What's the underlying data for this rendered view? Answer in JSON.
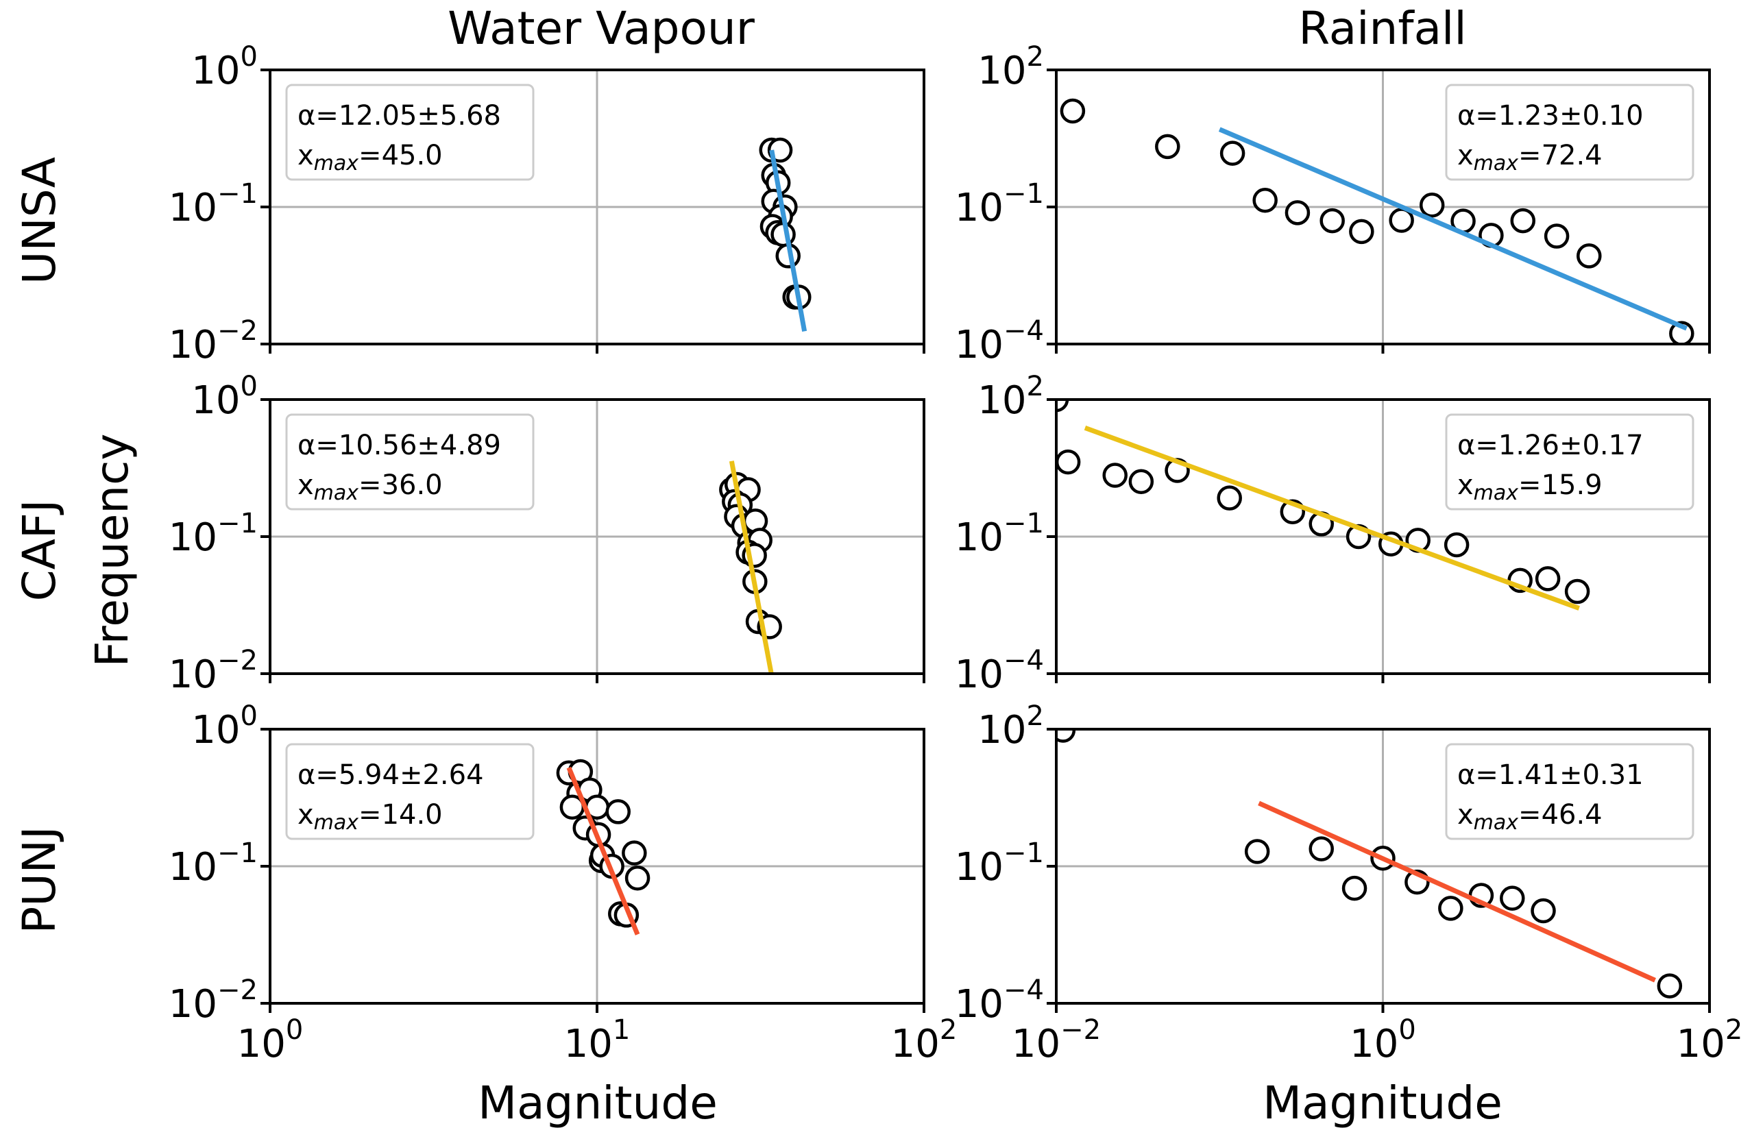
{
  "figure": {
    "column_titles": [
      "Water Vapour",
      "Rainfall"
    ],
    "row_labels": [
      "UNSA",
      "CAFJ",
      "PUNJ"
    ],
    "xlabel": "Magnitude",
    "ylabel": "Frequency",
    "colors": {
      "UNSA": "#3a97d8",
      "CAFJ": "#ebc117",
      "PUNJ": "#f4532e"
    }
  },
  "chart_data": [
    {
      "type": "scatter",
      "log_x": true,
      "log_y": true,
      "station": "UNSA",
      "variable": "Water Vapour",
      "xlim_exp": [
        0,
        2
      ],
      "ylim_exp": [
        -2,
        0
      ],
      "x_ticks": [
        {
          "base": "10",
          "exp": "0"
        },
        {
          "base": "10",
          "exp": "1"
        },
        {
          "base": "10",
          "exp": "2"
        }
      ],
      "y_ticks": [
        {
          "base": "10",
          "exp": "0"
        },
        {
          "base": "10",
          "exp": "−1"
        },
        {
          "base": "10",
          "exp": "−2"
        }
      ],
      "show_xticklabels": false,
      "grid": true,
      "legend": "top-left",
      "fit_color": "#3a97d8",
      "annotation": {
        "alpha": "α=12.05±5.68",
        "xmax_prefix": "x",
        "xmax_sub": "max",
        "xmax_value": "=45.0"
      },
      "points": [
        [
          34.2,
          0.26
        ],
        [
          36.3,
          0.26
        ],
        [
          34.7,
          0.17
        ],
        [
          35.8,
          0.15
        ],
        [
          34.7,
          0.11
        ],
        [
          37.6,
          0.1
        ],
        [
          36.4,
          0.085
        ],
        [
          34.4,
          0.072
        ],
        [
          35.7,
          0.065
        ],
        [
          37.1,
          0.063
        ],
        [
          38.4,
          0.044
        ],
        [
          40.3,
          0.022
        ],
        [
          41.4,
          0.022
        ]
      ],
      "fit": [
        [
          34.2,
          0.26
        ],
        [
          43.1,
          0.0124
        ]
      ]
    },
    {
      "type": "scatter",
      "log_x": true,
      "log_y": true,
      "station": "UNSA",
      "variable": "Rainfall",
      "xlim_exp": [
        -2,
        2
      ],
      "ylim_exp": [
        -4,
        2
      ],
      "x_ticks": [
        {
          "base": "10",
          "exp": "−2"
        },
        {
          "base": "10",
          "exp": "0"
        },
        {
          "base": "10",
          "exp": "2"
        }
      ],
      "y_ticks": [
        {
          "base": "10",
          "exp": "2"
        },
        {
          "base": "10",
          "exp": "−1"
        },
        {
          "base": "10",
          "exp": "−4"
        }
      ],
      "show_xticklabels": false,
      "grid": true,
      "legend": "top-right",
      "fit_color": "#3a97d8",
      "annotation": {
        "alpha": "α=1.23±0.10",
        "xmax_prefix": "x",
        "xmax_sub": "max",
        "xmax_value": "=72.4"
      },
      "points": [
        [
          0.0126,
          12.6
        ],
        [
          0.048,
          2.1
        ],
        [
          0.12,
          1.5
        ],
        [
          0.19,
          0.14
        ],
        [
          0.3,
          0.075
        ],
        [
          0.49,
          0.05
        ],
        [
          0.74,
          0.029
        ],
        [
          1.3,
          0.051
        ],
        [
          2.0,
          0.11
        ],
        [
          3.1,
          0.049
        ],
        [
          4.6,
          0.024
        ],
        [
          7.2,
          0.05
        ],
        [
          11.6,
          0.023
        ],
        [
          18.3,
          0.0085
        ],
        [
          67.5,
          0.00017
        ]
      ],
      "fit": [
        [
          0.1,
          5.0
        ],
        [
          72.4,
          0.00022
        ]
      ]
    },
    {
      "type": "scatter",
      "log_x": true,
      "log_y": true,
      "station": "CAFJ",
      "variable": "Water Vapour",
      "xlim_exp": [
        0,
        2
      ],
      "ylim_exp": [
        -2,
        0
      ],
      "x_ticks": [
        {
          "base": "10",
          "exp": "0"
        },
        {
          "base": "10",
          "exp": "1"
        },
        {
          "base": "10",
          "exp": "2"
        }
      ],
      "y_ticks": [
        {
          "base": "10",
          "exp": "0"
        },
        {
          "base": "10",
          "exp": "−1"
        },
        {
          "base": "10",
          "exp": "−2"
        }
      ],
      "show_xticklabels": false,
      "grid": true,
      "legend": "top-left",
      "fit_color": "#ebc117",
      "annotation": {
        "alpha": "α=10.56±4.89",
        "xmax_prefix": "x",
        "xmax_sub": "max",
        "xmax_value": "=36.0"
      },
      "points": [
        [
          25.8,
          0.22
        ],
        [
          26.8,
          0.24
        ],
        [
          29.0,
          0.22
        ],
        [
          26.3,
          0.18
        ],
        [
          27.4,
          0.17
        ],
        [
          26.7,
          0.14
        ],
        [
          28.1,
          0.12
        ],
        [
          30.5,
          0.13
        ],
        [
          29.3,
          0.09
        ],
        [
          31.5,
          0.094
        ],
        [
          29.0,
          0.077
        ],
        [
          30.3,
          0.073
        ],
        [
          30.4,
          0.047
        ],
        [
          31.1,
          0.024
        ],
        [
          33.7,
          0.022
        ]
      ],
      "fit": [
        [
          25.8,
          0.356
        ],
        [
          34.1,
          0.0101
        ]
      ]
    },
    {
      "type": "scatter",
      "log_x": true,
      "log_y": true,
      "station": "CAFJ",
      "variable": "Rainfall",
      "xlim_exp": [
        -2,
        2
      ],
      "ylim_exp": [
        -4,
        2
      ],
      "x_ticks": [
        {
          "base": "10",
          "exp": "−2"
        },
        {
          "base": "10",
          "exp": "0"
        },
        {
          "base": "10",
          "exp": "2"
        }
      ],
      "y_ticks": [
        {
          "base": "10",
          "exp": "2"
        },
        {
          "base": "10",
          "exp": "−1"
        },
        {
          "base": "10",
          "exp": "−4"
        }
      ],
      "show_xticklabels": false,
      "grid": true,
      "legend": "top-right",
      "fit_color": "#ebc117",
      "annotation": {
        "alpha": "α=1.26±0.17",
        "xmax_prefix": "x",
        "xmax_sub": "max",
        "xmax_value": "=15.9"
      },
      "points": [
        [
          0.01,
          100
        ],
        [
          0.0118,
          4.3
        ],
        [
          0.0229,
          2.2
        ],
        [
          0.0331,
          1.6
        ],
        [
          0.0551,
          2.8
        ],
        [
          0.115,
          0.7
        ],
        [
          0.28,
          0.35
        ],
        [
          0.42,
          0.19
        ],
        [
          0.71,
          0.1
        ],
        [
          1.12,
          0.069
        ],
        [
          1.64,
          0.083
        ],
        [
          2.83,
          0.066
        ],
        [
          6.92,
          0.011
        ],
        [
          10.23,
          0.012
        ],
        [
          15.5,
          0.0063
        ]
      ],
      "fit": [
        [
          0.015,
          24.0
        ],
        [
          15.9,
          0.0027
        ]
      ]
    },
    {
      "type": "scatter",
      "log_x": true,
      "log_y": true,
      "station": "PUNJ",
      "variable": "Water Vapour",
      "xlim_exp": [
        0,
        2
      ],
      "ylim_exp": [
        -2,
        0
      ],
      "x_ticks": [
        {
          "base": "10",
          "exp": "0"
        },
        {
          "base": "10",
          "exp": "1"
        },
        {
          "base": "10",
          "exp": "2"
        }
      ],
      "y_ticks": [
        {
          "base": "10",
          "exp": "0"
        },
        {
          "base": "10",
          "exp": "−1"
        },
        {
          "base": "10",
          "exp": "−2"
        }
      ],
      "show_xticklabels": true,
      "grid": true,
      "legend": "top-left",
      "fit_color": "#f4532e",
      "annotation": {
        "alpha": "α=5.94±2.64",
        "xmax_prefix": "x",
        "xmax_sub": "max",
        "xmax_value": "=14.0"
      },
      "points": [
        [
          8.2,
          0.48
        ],
        [
          8.9,
          0.49
        ],
        [
          8.8,
          0.34
        ],
        [
          9.5,
          0.36
        ],
        [
          8.4,
          0.27
        ],
        [
          10.0,
          0.27
        ],
        [
          11.6,
          0.25
        ],
        [
          9.2,
          0.19
        ],
        [
          10.1,
          0.17
        ],
        [
          10.3,
          0.11
        ],
        [
          10.4,
          0.12
        ],
        [
          11.1,
          0.1
        ],
        [
          13.0,
          0.125
        ],
        [
          13.3,
          0.082
        ],
        [
          11.8,
          0.045
        ],
        [
          12.3,
          0.044
        ]
      ],
      "fit": [
        [
          8.2,
          0.524
        ],
        [
          13.3,
          0.0318
        ]
      ]
    },
    {
      "type": "scatter",
      "log_x": true,
      "log_y": true,
      "station": "PUNJ",
      "variable": "Rainfall",
      "xlim_exp": [
        -2,
        2
      ],
      "ylim_exp": [
        -4,
        2
      ],
      "x_ticks": [
        {
          "base": "10",
          "exp": "−2"
        },
        {
          "base": "10",
          "exp": "0"
        },
        {
          "base": "10",
          "exp": "2"
        }
      ],
      "y_ticks": [
        {
          "base": "10",
          "exp": "2"
        },
        {
          "base": "10",
          "exp": "−1"
        },
        {
          "base": "10",
          "exp": "−4"
        }
      ],
      "show_xticklabels": true,
      "grid": true,
      "legend": "top-right",
      "fit_color": "#f4532e",
      "annotation": {
        "alpha": "α=1.41±0.31",
        "xmax_prefix": "x",
        "xmax_sub": "max",
        "xmax_value": "=46.4"
      },
      "points": [
        [
          0.011,
          95
        ],
        [
          0.17,
          0.21
        ],
        [
          0.42,
          0.24
        ],
        [
          0.67,
          0.033
        ],
        [
          1.0,
          0.15
        ],
        [
          1.62,
          0.045
        ],
        [
          2.6,
          0.012
        ],
        [
          4.0,
          0.023
        ],
        [
          6.2,
          0.02
        ],
        [
          9.6,
          0.0106
        ],
        [
          57,
          0.00024
        ]
      ],
      "fit": [
        [
          0.174,
          2.4
        ],
        [
          46.4,
          0.00032
        ]
      ]
    }
  ]
}
